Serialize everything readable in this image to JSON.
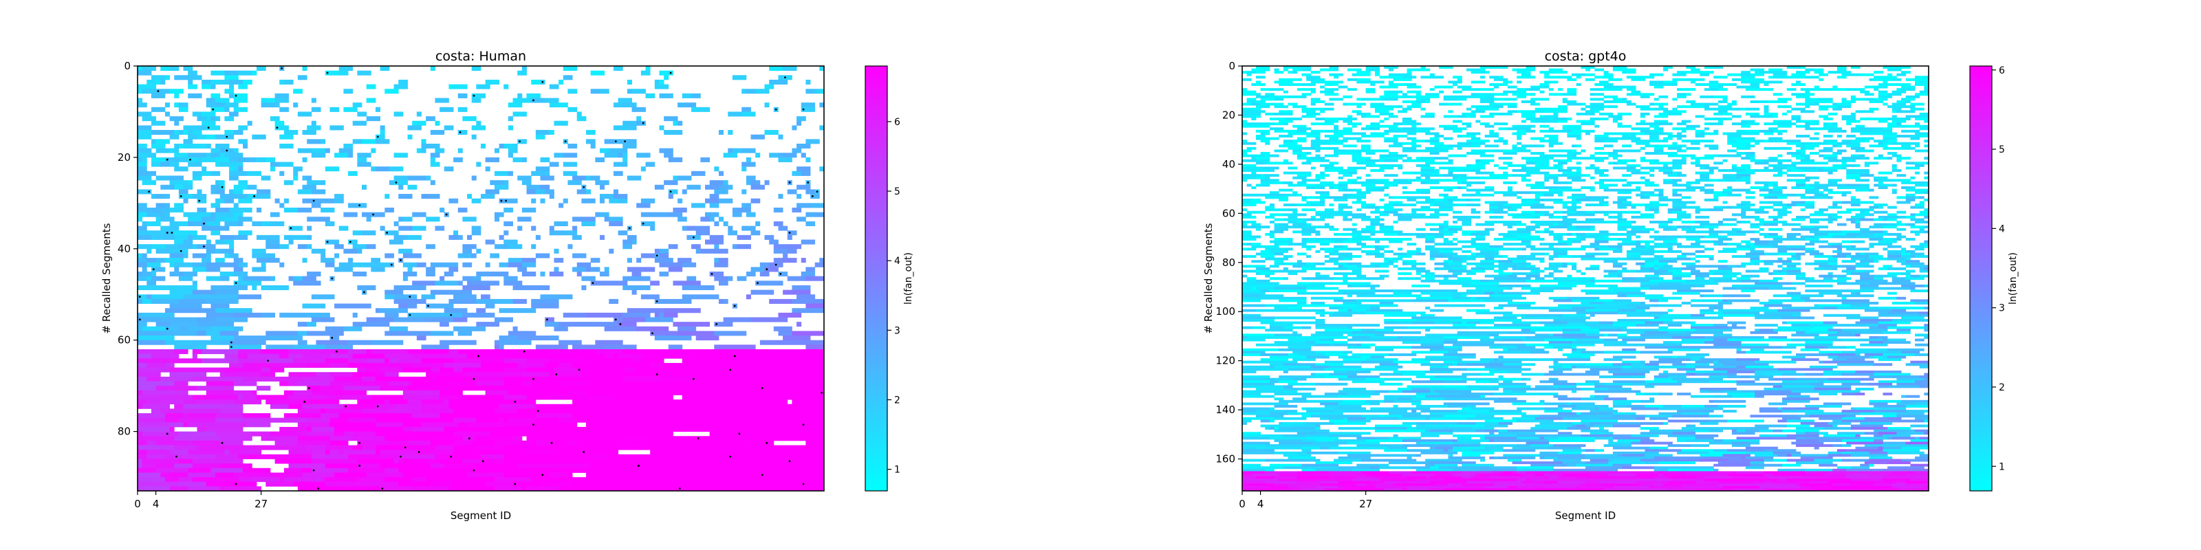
{
  "chart_data": [
    {
      "type": "heatmap",
      "title": "costa: Human",
      "xlabel": "Segment ID",
      "ylabel": "# Recalled Segments",
      "x_ticks": [
        0,
        4,
        27
      ],
      "y_ticks": [
        0,
        20,
        40,
        60,
        80
      ],
      "x_range": [
        0,
        150
      ],
      "y_range": [
        0,
        93
      ],
      "colorbar": {
        "label": "ln(fan_out)",
        "ticks": [
          1,
          2,
          3,
          4,
          5,
          6
        ],
        "range": [
          0.69,
          6.8
        ],
        "colors": [
          "#00ffff",
          "#ff00ff"
        ]
      },
      "legend": "none",
      "grid": false,
      "seed": 11
    },
    {
      "type": "heatmap",
      "title": "costa: gpt4o",
      "xlabel": "Segment ID",
      "ylabel": "# Recalled Segments",
      "x_ticks": [
        0,
        4,
        27
      ],
      "y_ticks": [
        0,
        20,
        40,
        60,
        80,
        100,
        120,
        140,
        160
      ],
      "x_range": [
        0,
        150
      ],
      "y_range": [
        0,
        173
      ],
      "colorbar": {
        "label": "ln(fan_out)",
        "ticks": [
          1,
          2,
          3,
          4,
          5,
          6
        ],
        "range": [
          0.69,
          6.05
        ],
        "colors": [
          "#00ffff",
          "#ff00ff"
        ]
      },
      "legend": "none",
      "grid": false,
      "seed": 29
    }
  ]
}
